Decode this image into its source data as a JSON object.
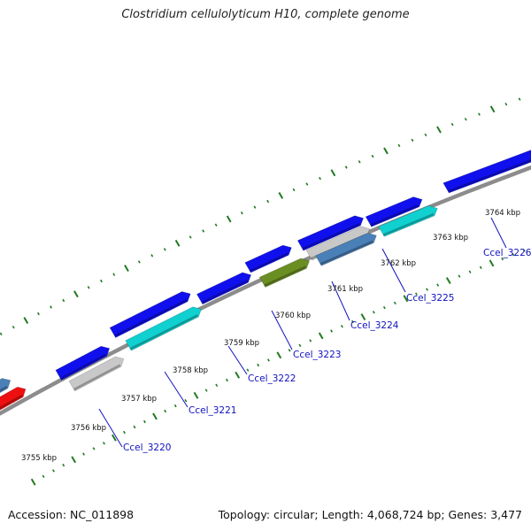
{
  "title": "Clostridium cellulolyticum H10, complete genome",
  "footer": {
    "accession": "Accession: NC_011898",
    "summary": "Topology: circular; Length: 4,068,724 bp; Genes: 3,477"
  },
  "colors": {
    "backbone": "#8c8c8c",
    "ticks": "#1f7a1f",
    "gene_blue": "#1010ee",
    "gene_cyan": "#10d0d0",
    "gene_gray": "#c8c8c8",
    "gene_olive": "#6b8e23",
    "gene_steel": "#4a80b8",
    "gene_red": "#ee1010",
    "label_color": "#1010c0"
  },
  "kbp_labels": [
    "3755 kbp",
    "3756 kbp",
    "3757 kbp",
    "3758 kbp",
    "3759 kbp",
    "3760 kbp",
    "3761 kbp",
    "3762 kbp",
    "3763 kbp",
    "3764 kbp"
  ],
  "gene_labels": [
    "Ccel_3220",
    "Ccel_3221",
    "Ccel_3222",
    "Ccel_3223",
    "Ccel_3224",
    "Ccel_3225",
    "Ccel_3226"
  ]
}
